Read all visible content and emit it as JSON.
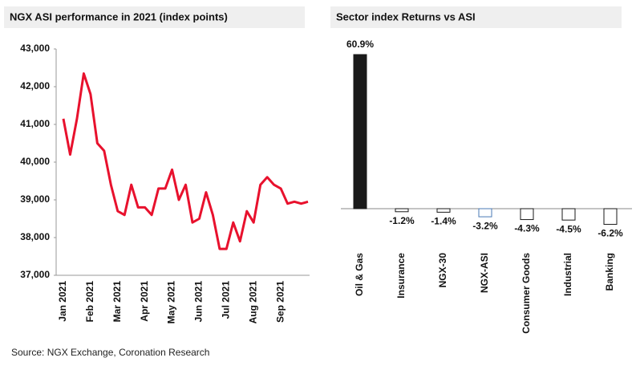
{
  "chart_data": [
    {
      "type": "line",
      "title": "NGX ASI performance in 2021 (index points)",
      "categories": [
        "Jan 2021",
        null,
        null,
        null,
        "Feb 2021",
        null,
        null,
        null,
        "Mar 2021",
        null,
        null,
        null,
        "Apr 2021",
        null,
        null,
        null,
        "May 2021",
        null,
        null,
        null,
        "Jun 2021",
        null,
        null,
        null,
        "Jul 2021",
        null,
        null,
        null,
        "Aug 2021",
        null,
        null,
        null,
        "Sep 2021",
        null,
        null,
        null,
        null
      ],
      "series": [
        {
          "name": "NGX ASI",
          "color": "#e8112d",
          "values": [
            41150,
            40200,
            41150,
            42350,
            41800,
            40500,
            40300,
            39400,
            38700,
            38600,
            39400,
            38800,
            38800,
            38600,
            39300,
            39300,
            39800,
            39000,
            39400,
            38400,
            38500,
            39200,
            38600,
            37700,
            37700,
            38400,
            37900,
            38700,
            38400,
            39400,
            39600,
            39400,
            39300,
            38900,
            38950,
            38900,
            38950
          ]
        }
      ],
      "ylim": [
        37000,
        43000
      ],
      "yticks": [
        {
          "value": 37000,
          "label": "37,000"
        },
        {
          "value": 38000,
          "label": "38,000"
        },
        {
          "value": 39000,
          "label": "39,000"
        },
        {
          "value": 40000,
          "label": "40,000"
        },
        {
          "value": 41000,
          "label": "41,000"
        },
        {
          "value": 42000,
          "label": "42,000"
        },
        {
          "value": 43000,
          "label": "43,000"
        }
      ]
    },
    {
      "type": "bar",
      "title": "Sector index Returns vs ASI",
      "categories": [
        "Oil & Gas",
        "Insurance",
        "NGX-30",
        "NGX-ASI",
        "Consumer Goods",
        "Industrial",
        "Banking"
      ],
      "values": [
        60.9,
        -1.2,
        -1.4,
        -3.2,
        -4.3,
        -4.5,
        -6.2
      ],
      "value_labels": [
        "60.9%",
        "-1.2%",
        "-1.4%",
        "-3.2%",
        "-4.3%",
        "-4.5%",
        "-6.2%"
      ],
      "colors": [
        "#1a1a1a",
        "#ffffff",
        "#ffffff",
        "#ffffff",
        "#ffffff",
        "#ffffff",
        "#ffffff"
      ],
      "edge_colors": [
        "#1a1a1a",
        "#1a1a1a",
        "#1a1a1a",
        "#4a7ab5",
        "#1a1a1a",
        "#1a1a1a",
        "#1a1a1a"
      ]
    }
  ],
  "source": "Source: NGX Exchange, Coronation Research"
}
